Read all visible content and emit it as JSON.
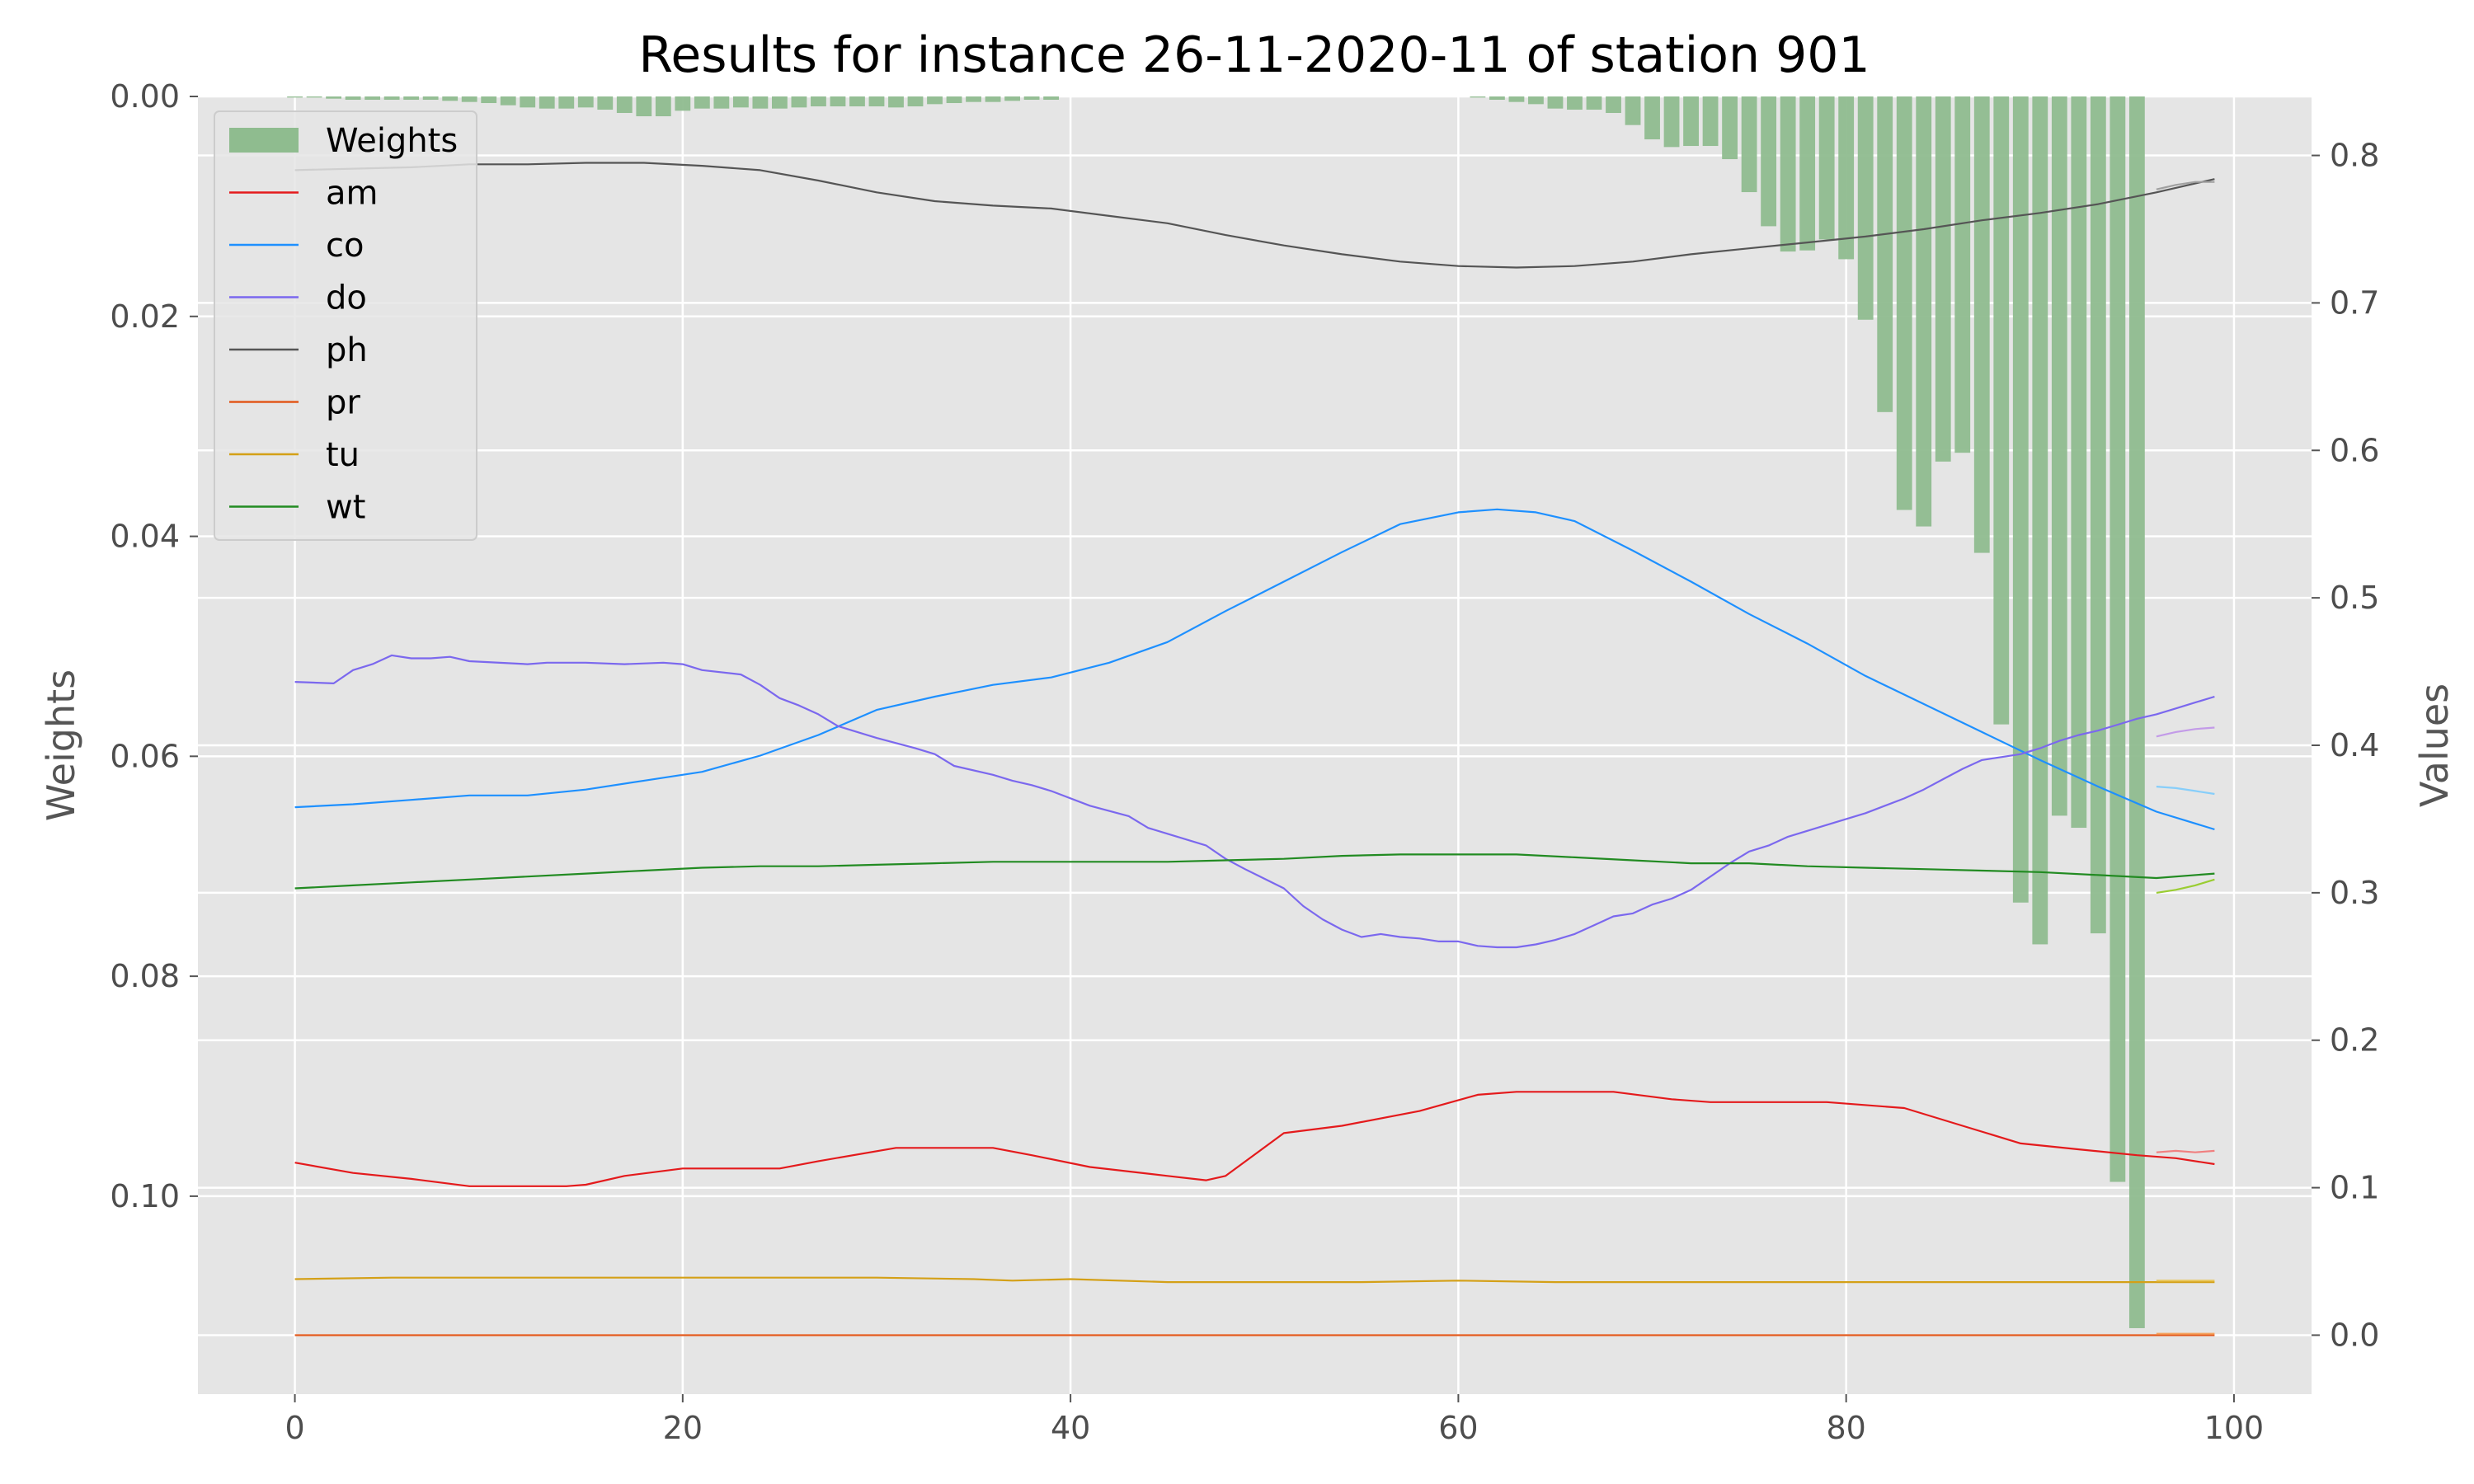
{
  "chart_data": {
    "type": "bar+line",
    "title": "Results for instance 26-11-2020-11 of station 901",
    "xlabel": "",
    "ylabel_left": "Weights",
    "ylabel_right": "Values",
    "xlim": [
      -5,
      104
    ],
    "ylim_left": [
      0.118,
      0.0
    ],
    "ylim_right": [
      -0.04,
      0.84
    ],
    "x_ticks": [
      0,
      20,
      40,
      60,
      80,
      100
    ],
    "y_ticks_left": [
      0.0,
      0.02,
      0.04,
      0.06,
      0.08,
      0.1
    ],
    "y_ticks_left_labels": [
      "0.00",
      "0.02",
      "0.04",
      "0.06",
      "0.08",
      "0.10"
    ],
    "y_ticks_right": [
      0.0,
      0.1,
      0.2,
      0.3,
      0.4,
      0.5,
      0.6,
      0.7,
      0.8
    ],
    "y_ticks_right_labels": [
      "0.0",
      "0.1",
      "0.2",
      "0.3",
      "0.4",
      "0.5",
      "0.6",
      "0.7",
      "0.8"
    ],
    "grid": true,
    "legend_position": "top-left",
    "weights": {
      "name": "Weights",
      "color": "#8fbc8f",
      "x": [
        0,
        1,
        2,
        3,
        4,
        5,
        6,
        7,
        8,
        9,
        10,
        11,
        12,
        13,
        14,
        15,
        16,
        17,
        18,
        19,
        20,
        21,
        22,
        23,
        24,
        25,
        26,
        27,
        28,
        29,
        30,
        31,
        32,
        33,
        34,
        35,
        36,
        37,
        38,
        39,
        40,
        41,
        42,
        43,
        44,
        45,
        46,
        47,
        48,
        49,
        50,
        51,
        52,
        53,
        54,
        55,
        56,
        57,
        58,
        59,
        60,
        61,
        62,
        63,
        64,
        65,
        66,
        67,
        68,
        69,
        70,
        71,
        72,
        73,
        74,
        75,
        76,
        77,
        78,
        79,
        80,
        81,
        82,
        83,
        84,
        85,
        86,
        87,
        88,
        89,
        90,
        91,
        92,
        93,
        94,
        95
      ],
      "values": [
        0.0001,
        0.0001,
        0.0002,
        0.0003,
        0.0003,
        0.0003,
        0.0003,
        0.0003,
        0.0004,
        0.0005,
        0.0006,
        0.0008,
        0.001,
        0.0011,
        0.0011,
        0.001,
        0.0012,
        0.0015,
        0.0018,
        0.0018,
        0.0013,
        0.0011,
        0.0011,
        0.001,
        0.0011,
        0.0011,
        0.001,
        0.0009,
        0.0009,
        0.0009,
        0.0009,
        0.001,
        0.0009,
        0.0007,
        0.0006,
        0.0005,
        0.0005,
        0.0004,
        0.0003,
        0.0003,
        0,
        0,
        0,
        0,
        0,
        0,
        0,
        0,
        0,
        0,
        0,
        0,
        0,
        0,
        0,
        0,
        0,
        0,
        0,
        0,
        0,
        0.0001,
        0.0003,
        0.0005,
        0.0007,
        0.0011,
        0.0012,
        0.0012,
        0.0015,
        0.0026,
        0.0039,
        0.0046,
        0.0045,
        0.0045,
        0.0057,
        0.0087,
        0.0118,
        0.0141,
        0.014,
        0.013,
        0.0148,
        0.0203,
        0.0287,
        0.0376,
        0.0391,
        0.0332,
        0.0324,
        0.0415,
        0.0571,
        0.0733,
        0.0771,
        0.0654,
        0.0665,
        0.0761,
        0.0987,
        0.112
      ]
    },
    "series": [
      {
        "name": "am",
        "color": "#e41a1c",
        "x": [
          0,
          3,
          6,
          9,
          12,
          14,
          15,
          17,
          20,
          25,
          27,
          31,
          36,
          38,
          41,
          45,
          47,
          48,
          51,
          54,
          58,
          61,
          63,
          68,
          71,
          73,
          77,
          79,
          83,
          86,
          89,
          92,
          95,
          97,
          99
        ],
        "values": [
          0.117,
          0.11,
          0.106,
          0.101,
          0.101,
          0.101,
          0.102,
          0.108,
          0.113,
          0.113,
          0.118,
          0.127,
          0.127,
          0.122,
          0.114,
          0.108,
          0.105,
          0.108,
          0.137,
          0.142,
          0.152,
          0.163,
          0.165,
          0.165,
          0.16,
          0.158,
          0.158,
          0.158,
          0.154,
          0.142,
          0.13,
          0.126,
          0.122,
          0.12,
          0.116
        ]
      },
      {
        "name": "co",
        "color": "#1e90ff",
        "x": [
          0,
          3,
          6,
          9,
          12,
          15,
          18,
          21,
          24,
          27,
          30,
          33,
          36,
          39,
          42,
          45,
          48,
          51,
          54,
          57,
          60,
          62,
          64,
          66,
          69,
          72,
          75,
          78,
          81,
          84,
          87,
          90,
          93,
          96,
          99
        ],
        "values": [
          0.358,
          0.36,
          0.363,
          0.366,
          0.366,
          0.37,
          0.376,
          0.382,
          0.393,
          0.407,
          0.424,
          0.433,
          0.441,
          0.446,
          0.456,
          0.47,
          0.491,
          0.511,
          0.531,
          0.55,
          0.558,
          0.56,
          0.558,
          0.552,
          0.532,
          0.511,
          0.489,
          0.469,
          0.447,
          0.428,
          0.409,
          0.39,
          0.372,
          0.355,
          0.343
        ]
      },
      {
        "name": "do",
        "color": "#7b68ee",
        "x": [
          0,
          2,
          3,
          4,
          5,
          6,
          7,
          8,
          9,
          12,
          13,
          15,
          17,
          19,
          20,
          21,
          23,
          24,
          25,
          26,
          27,
          28,
          30,
          32,
          33,
          34,
          36,
          37,
          38,
          39,
          41,
          43,
          44,
          45,
          47,
          48,
          49,
          51,
          52,
          53,
          54,
          55,
          56,
          57,
          58,
          59,
          60,
          61,
          62,
          63,
          64,
          65,
          66,
          67,
          68,
          69,
          70,
          71,
          72,
          74,
          75,
          76,
          77,
          79,
          80,
          81,
          82,
          83,
          84,
          85,
          86,
          87,
          88,
          89,
          90,
          91,
          92,
          93,
          94,
          95,
          96,
          97,
          98,
          99
        ],
        "values": [
          0.443,
          0.442,
          0.451,
          0.455,
          0.461,
          0.459,
          0.459,
          0.46,
          0.457,
          0.455,
          0.456,
          0.456,
          0.455,
          0.456,
          0.455,
          0.451,
          0.448,
          0.441,
          0.432,
          0.427,
          0.421,
          0.413,
          0.405,
          0.398,
          0.394,
          0.386,
          0.38,
          0.376,
          0.373,
          0.369,
          0.359,
          0.352,
          0.344,
          0.34,
          0.332,
          0.323,
          0.316,
          0.303,
          0.291,
          0.282,
          0.275,
          0.27,
          0.272,
          0.27,
          0.269,
          0.267,
          0.267,
          0.264,
          0.263,
          0.263,
          0.265,
          0.268,
          0.272,
          0.278,
          0.284,
          0.286,
          0.292,
          0.296,
          0.302,
          0.32,
          0.328,
          0.332,
          0.338,
          0.346,
          0.35,
          0.354,
          0.359,
          0.364,
          0.37,
          0.377,
          0.384,
          0.39,
          0.392,
          0.394,
          0.398,
          0.403,
          0.407,
          0.41,
          0.414,
          0.418,
          0.421,
          0.425,
          0.429,
          0.433
        ]
      },
      {
        "name": "ph",
        "color": "#555555",
        "x": [
          0,
          3,
          6,
          9,
          12,
          15,
          18,
          21,
          24,
          27,
          30,
          33,
          36,
          39,
          42,
          45,
          48,
          51,
          54,
          57,
          60,
          63,
          66,
          69,
          72,
          75,
          78,
          81,
          84,
          87,
          90,
          93,
          96,
          99
        ],
        "values": [
          0.79,
          0.791,
          0.792,
          0.794,
          0.794,
          0.795,
          0.795,
          0.793,
          0.79,
          0.783,
          0.775,
          0.769,
          0.766,
          0.764,
          0.759,
          0.754,
          0.746,
          0.739,
          0.733,
          0.728,
          0.725,
          0.724,
          0.725,
          0.728,
          0.733,
          0.737,
          0.741,
          0.745,
          0.75,
          0.756,
          0.761,
          0.767,
          0.775,
          0.784
        ]
      },
      {
        "name": "pr",
        "color": "#e2581b",
        "x": [
          0,
          20,
          40,
          60,
          80,
          99
        ],
        "values": [
          0.0,
          0.0,
          0.0,
          0.0,
          0.0,
          0.0
        ]
      },
      {
        "name": "tu",
        "color": "#d4a017",
        "x": [
          0,
          5,
          10,
          15,
          20,
          25,
          30,
          35,
          37,
          40,
          45,
          50,
          55,
          60,
          65,
          70,
          75,
          80,
          85,
          90,
          95,
          99
        ],
        "values": [
          0.038,
          0.039,
          0.039,
          0.039,
          0.039,
          0.039,
          0.039,
          0.038,
          0.037,
          0.038,
          0.036,
          0.036,
          0.036,
          0.037,
          0.036,
          0.036,
          0.036,
          0.036,
          0.036,
          0.036,
          0.036,
          0.036
        ]
      },
      {
        "name": "wt",
        "color": "#228b22",
        "x": [
          0,
          3,
          6,
          9,
          12,
          15,
          18,
          21,
          24,
          27,
          30,
          33,
          36,
          39,
          42,
          45,
          48,
          51,
          54,
          57,
          60,
          63,
          66,
          69,
          72,
          75,
          78,
          81,
          84,
          87,
          90,
          93,
          96,
          99
        ],
        "values": [
          0.303,
          0.305,
          0.307,
          0.309,
          0.311,
          0.313,
          0.315,
          0.317,
          0.318,
          0.318,
          0.319,
          0.32,
          0.321,
          0.321,
          0.321,
          0.321,
          0.322,
          0.323,
          0.325,
          0.326,
          0.326,
          0.326,
          0.324,
          0.322,
          0.32,
          0.32,
          0.318,
          0.317,
          0.316,
          0.315,
          0.314,
          0.312,
          0.31,
          0.313
        ]
      }
    ],
    "predictions": [
      {
        "series": "am",
        "color": "#f08080",
        "x": [
          96,
          97,
          98,
          99
        ],
        "values": [
          0.124,
          0.125,
          0.124,
          0.125
        ]
      },
      {
        "series": "co",
        "color": "#87cefa",
        "x": [
          96,
          97,
          98,
          99
        ],
        "values": [
          0.372,
          0.371,
          0.369,
          0.367
        ]
      },
      {
        "series": "do",
        "color": "#c39be8",
        "x": [
          96,
          97,
          98,
          99
        ],
        "values": [
          0.406,
          0.409,
          0.411,
          0.412
        ]
      },
      {
        "series": "ph",
        "color": "#a0a0a0",
        "x": [
          96,
          97,
          98,
          99
        ],
        "values": [
          0.777,
          0.78,
          0.782,
          0.782
        ]
      },
      {
        "series": "pr",
        "color": "#f4a460",
        "x": [
          96,
          97,
          98,
          99
        ],
        "values": [
          0.001,
          0.001,
          0.001,
          0.001
        ]
      },
      {
        "series": "tu",
        "color": "#e8c65a",
        "x": [
          96,
          97,
          98,
          99
        ],
        "values": [
          0.037,
          0.037,
          0.037,
          0.037
        ]
      },
      {
        "series": "wt",
        "color": "#9acd32",
        "x": [
          96,
          97,
          98,
          99
        ],
        "values": [
          0.3,
          0.302,
          0.305,
          0.309
        ]
      }
    ]
  }
}
